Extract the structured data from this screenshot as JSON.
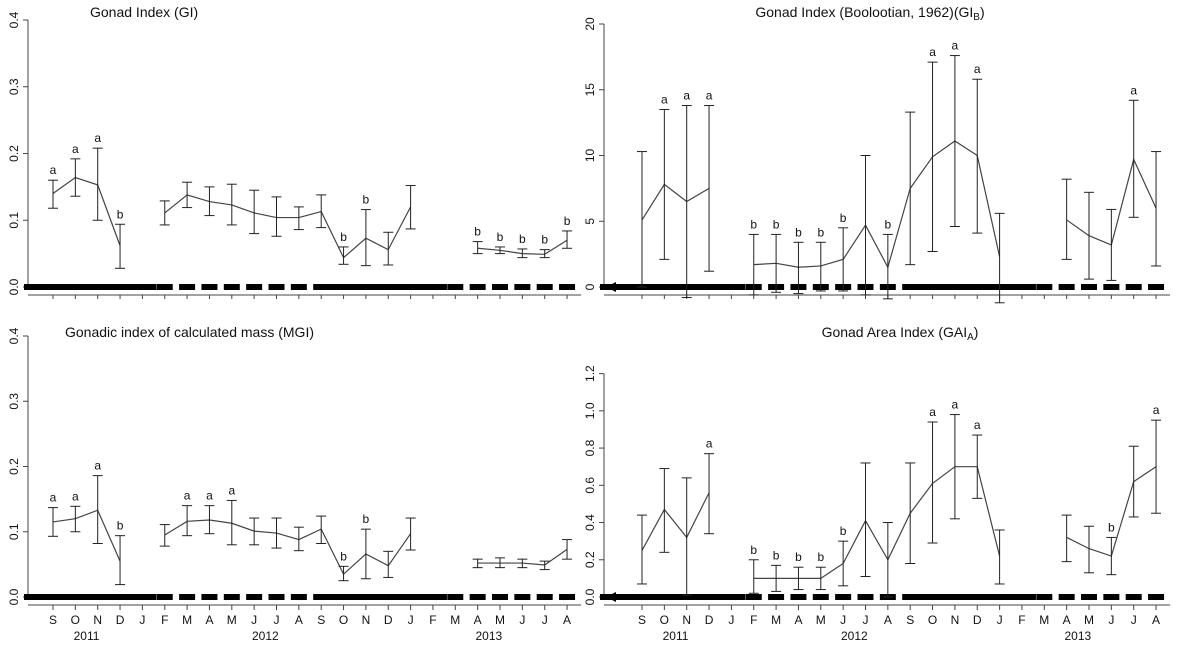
{
  "figure": {
    "x_months": [
      "S",
      "O",
      "N",
      "D",
      "J",
      "F",
      "M",
      "A",
      "M",
      "J",
      "J",
      "A",
      "S",
      "O",
      "N",
      "D",
      "J",
      "F",
      "M",
      "A",
      "M",
      "J",
      "J",
      "A"
    ],
    "x_years": [
      {
        "label": "2011",
        "from": 0,
        "to": 3
      },
      {
        "label": "2012",
        "from": 4,
        "to": 15
      },
      {
        "label": "2013",
        "from": 16,
        "to": 23
      }
    ],
    "line_color": "#444444",
    "text_color": "#111111"
  },
  "chart_data": [
    {
      "type": "line",
      "title": "Gonad Index  (GI)",
      "title_parts": [
        {
          "text": "Gonad Index  (GI)"
        }
      ],
      "ylim": [
        0,
        0.4
      ],
      "yticks": [
        0,
        0.1,
        0.2,
        0.3,
        0.4
      ],
      "ytick_labels": [
        "0.0",
        "0.1",
        "0.2",
        "0.3",
        "0.4"
      ],
      "segments": [
        [
          {
            "i": 0,
            "mean": 0.14,
            "lo": 0.118,
            "hi": 0.16,
            "letter": "a"
          },
          {
            "i": 1,
            "mean": 0.164,
            "lo": 0.136,
            "hi": 0.192,
            "letter": "a"
          },
          {
            "i": 2,
            "mean": 0.153,
            "lo": 0.1,
            "hi": 0.208,
            "letter": "a"
          },
          {
            "i": 3,
            "mean": 0.062,
            "lo": 0.028,
            "hi": 0.094,
            "letter": "b"
          }
        ],
        [
          {
            "i": 5,
            "mean": 0.111,
            "lo": 0.093,
            "hi": 0.129,
            "letter": ""
          },
          {
            "i": 6,
            "mean": 0.138,
            "lo": 0.119,
            "hi": 0.157,
            "letter": ""
          },
          {
            "i": 7,
            "mean": 0.128,
            "lo": 0.107,
            "hi": 0.15,
            "letter": ""
          },
          {
            "i": 8,
            "mean": 0.123,
            "lo": 0.093,
            "hi": 0.154,
            "letter": ""
          },
          {
            "i": 9,
            "mean": 0.111,
            "lo": 0.08,
            "hi": 0.145,
            "letter": ""
          },
          {
            "i": 10,
            "mean": 0.104,
            "lo": 0.076,
            "hi": 0.135,
            "letter": ""
          },
          {
            "i": 11,
            "mean": 0.104,
            "lo": 0.086,
            "hi": 0.12,
            "letter": ""
          },
          {
            "i": 12,
            "mean": 0.113,
            "lo": 0.089,
            "hi": 0.138,
            "letter": ""
          },
          {
            "i": 13,
            "mean": 0.044,
            "lo": 0.034,
            "hi": 0.06,
            "letter": "b"
          },
          {
            "i": 14,
            "mean": 0.073,
            "lo": 0.032,
            "hi": 0.116,
            "letter": "b"
          },
          {
            "i": 15,
            "mean": 0.056,
            "lo": 0.033,
            "hi": 0.082,
            "letter": ""
          },
          {
            "i": 16,
            "mean": 0.12,
            "lo": 0.087,
            "hi": 0.152,
            "letter": ""
          }
        ],
        [
          {
            "i": 19,
            "mean": 0.058,
            "lo": 0.05,
            "hi": 0.068,
            "letter": "b"
          },
          {
            "i": 20,
            "mean": 0.055,
            "lo": 0.05,
            "hi": 0.06,
            "letter": "b"
          },
          {
            "i": 21,
            "mean": 0.05,
            "lo": 0.044,
            "hi": 0.057,
            "letter": "b"
          },
          {
            "i": 22,
            "mean": 0.049,
            "lo": 0.044,
            "hi": 0.056,
            "letter": "b"
          },
          {
            "i": 23,
            "mean": 0.07,
            "lo": 0.058,
            "hi": 0.084,
            "letter": "b"
          }
        ]
      ]
    },
    {
      "type": "line",
      "title": "Gonad Index (Boolootian, 1962)(GIB)",
      "title_parts": [
        {
          "text": "Gonad Index (Boolootian, 1962)(GI"
        },
        {
          "text": "B",
          "sub": true
        },
        {
          "text": ")"
        }
      ],
      "ylim": [
        0,
        20
      ],
      "yticks": [
        0,
        5,
        10,
        15,
        20
      ],
      "ytick_labels": [
        "0",
        "5",
        "10",
        "15",
        "20"
      ],
      "segments": [
        [
          {
            "i": 0,
            "mean": 5.1,
            "lo": 0.0,
            "hi": 10.3,
            "letter": ""
          },
          {
            "i": 1,
            "mean": 7.8,
            "lo": 2.1,
            "hi": 13.5,
            "letter": "a"
          },
          {
            "i": 2,
            "mean": 6.5,
            "lo": -0.8,
            "hi": 13.8,
            "letter": "a"
          },
          {
            "i": 3,
            "mean": 7.5,
            "lo": 1.2,
            "hi": 13.8,
            "letter": "a"
          }
        ],
        [
          {
            "i": 5,
            "mean": 1.7,
            "lo": -0.6,
            "hi": 4.0,
            "letter": "b"
          },
          {
            "i": 6,
            "mean": 1.8,
            "lo": -0.4,
            "hi": 4.0,
            "letter": "b"
          },
          {
            "i": 7,
            "mean": 1.5,
            "lo": -0.5,
            "hi": 3.4,
            "letter": "b"
          },
          {
            "i": 8,
            "mean": 1.6,
            "lo": -0.3,
            "hi": 3.4,
            "letter": "b"
          },
          {
            "i": 9,
            "mean": 2.1,
            "lo": -0.3,
            "hi": 4.5,
            "letter": "b"
          },
          {
            "i": 10,
            "mean": 4.7,
            "lo": -0.6,
            "hi": 10.0,
            "letter": ""
          },
          {
            "i": 11,
            "mean": 1.5,
            "lo": -0.9,
            "hi": 4.0,
            "letter": "b"
          },
          {
            "i": 12,
            "mean": 7.5,
            "lo": 1.7,
            "hi": 13.3,
            "letter": ""
          },
          {
            "i": 13,
            "mean": 9.9,
            "lo": 2.7,
            "hi": 17.1,
            "letter": "a"
          },
          {
            "i": 14,
            "mean": 11.1,
            "lo": 4.6,
            "hi": 17.6,
            "letter": "a"
          },
          {
            "i": 15,
            "mean": 10.0,
            "lo": 4.1,
            "hi": 15.8,
            "letter": "a"
          },
          {
            "i": 16,
            "mean": 2.3,
            "lo": -1.2,
            "hi": 5.6,
            "letter": ""
          }
        ],
        [
          {
            "i": 19,
            "mean": 5.1,
            "lo": 2.1,
            "hi": 8.2,
            "letter": ""
          },
          {
            "i": 20,
            "mean": 3.9,
            "lo": 0.6,
            "hi": 7.2,
            "letter": ""
          },
          {
            "i": 21,
            "mean": 3.2,
            "lo": 0.5,
            "hi": 5.9,
            "letter": ""
          },
          {
            "i": 22,
            "mean": 9.7,
            "lo": 5.3,
            "hi": 14.2,
            "letter": "a"
          },
          {
            "i": 23,
            "mean": 6.0,
            "lo": 1.6,
            "hi": 10.3,
            "letter": ""
          }
        ]
      ]
    },
    {
      "type": "line",
      "title": "Gonadic index of calculated mass (MGI)",
      "title_parts": [
        {
          "text": "Gonadic index of calculated mass (MGI)"
        }
      ],
      "ylim": [
        0,
        0.4
      ],
      "yticks": [
        0,
        0.1,
        0.2,
        0.3,
        0.4
      ],
      "ytick_labels": [
        "0.0",
        "0.1",
        "0.2",
        "0.3",
        "0.4"
      ],
      "segments": [
        [
          {
            "i": 0,
            "mean": 0.115,
            "lo": 0.093,
            "hi": 0.137,
            "letter": "a"
          },
          {
            "i": 1,
            "mean": 0.12,
            "lo": 0.1,
            "hi": 0.139,
            "letter": "a"
          },
          {
            "i": 2,
            "mean": 0.133,
            "lo": 0.082,
            "hi": 0.186,
            "letter": "a"
          },
          {
            "i": 3,
            "mean": 0.055,
            "lo": 0.019,
            "hi": 0.094,
            "letter": "b"
          }
        ],
        [
          {
            "i": 5,
            "mean": 0.095,
            "lo": 0.078,
            "hi": 0.111,
            "letter": ""
          },
          {
            "i": 6,
            "mean": 0.116,
            "lo": 0.094,
            "hi": 0.14,
            "letter": "a"
          },
          {
            "i": 7,
            "mean": 0.118,
            "lo": 0.097,
            "hi": 0.14,
            "letter": "a"
          },
          {
            "i": 8,
            "mean": 0.113,
            "lo": 0.08,
            "hi": 0.148,
            "letter": "a"
          },
          {
            "i": 9,
            "mean": 0.101,
            "lo": 0.08,
            "hi": 0.121,
            "letter": ""
          },
          {
            "i": 10,
            "mean": 0.098,
            "lo": 0.075,
            "hi": 0.121,
            "letter": ""
          },
          {
            "i": 11,
            "mean": 0.088,
            "lo": 0.071,
            "hi": 0.107,
            "letter": ""
          },
          {
            "i": 12,
            "mean": 0.104,
            "lo": 0.082,
            "hi": 0.124,
            "letter": ""
          },
          {
            "i": 13,
            "mean": 0.035,
            "lo": 0.025,
            "hi": 0.047,
            "letter": "b"
          },
          {
            "i": 14,
            "mean": 0.066,
            "lo": 0.028,
            "hi": 0.104,
            "letter": "b"
          },
          {
            "i": 15,
            "mean": 0.048,
            "lo": 0.03,
            "hi": 0.07,
            "letter": ""
          },
          {
            "i": 16,
            "mean": 0.097,
            "lo": 0.072,
            "hi": 0.121,
            "letter": ""
          }
        ],
        [
          {
            "i": 19,
            "mean": 0.052,
            "lo": 0.045,
            "hi": 0.058,
            "letter": ""
          },
          {
            "i": 20,
            "mean": 0.052,
            "lo": 0.045,
            "hi": 0.06,
            "letter": ""
          },
          {
            "i": 21,
            "mean": 0.052,
            "lo": 0.045,
            "hi": 0.058,
            "letter": ""
          },
          {
            "i": 22,
            "mean": 0.049,
            "lo": 0.042,
            "hi": 0.055,
            "letter": ""
          },
          {
            "i": 23,
            "mean": 0.073,
            "lo": 0.058,
            "hi": 0.088,
            "letter": ""
          }
        ]
      ]
    },
    {
      "type": "line",
      "title": "Gonad Area Index  (GAIA)",
      "title_parts": [
        {
          "text": "Gonad Area Index  (GAI"
        },
        {
          "text": "A",
          "sub": true
        },
        {
          "text": ")"
        }
      ],
      "ylim": [
        0,
        1.3
      ],
      "yticks": [
        0,
        0.2,
        0.4,
        0.6,
        0.8,
        1.0,
        1.2
      ],
      "ytick_labels": [
        "0.0",
        "0.2",
        "0.4",
        "0.6",
        "0.8",
        "1.0",
        "1.2"
      ],
      "segments": [
        [
          {
            "i": 0,
            "mean": 0.25,
            "lo": 0.07,
            "hi": 0.44,
            "letter": ""
          },
          {
            "i": 1,
            "mean": 0.47,
            "lo": 0.24,
            "hi": 0.69,
            "letter": ""
          },
          {
            "i": 2,
            "mean": 0.32,
            "lo": 0.01,
            "hi": 0.64,
            "letter": ""
          },
          {
            "i": 3,
            "mean": 0.56,
            "lo": 0.34,
            "hi": 0.77,
            "letter": "a"
          }
        ],
        [
          {
            "i": 5,
            "mean": 0.1,
            "lo": 0.02,
            "hi": 0.2,
            "letter": "b"
          },
          {
            "i": 6,
            "mean": 0.1,
            "lo": 0.03,
            "hi": 0.17,
            "letter": "b"
          },
          {
            "i": 7,
            "mean": 0.1,
            "lo": 0.04,
            "hi": 0.16,
            "letter": "b"
          },
          {
            "i": 8,
            "mean": 0.1,
            "lo": 0.04,
            "hi": 0.16,
            "letter": "b"
          },
          {
            "i": 9,
            "mean": 0.18,
            "lo": 0.06,
            "hi": 0.3,
            "letter": "b"
          },
          {
            "i": 10,
            "mean": 0.41,
            "lo": 0.11,
            "hi": 0.72,
            "letter": ""
          },
          {
            "i": 11,
            "mean": 0.2,
            "lo": 0.0,
            "hi": 0.4,
            "letter": ""
          },
          {
            "i": 12,
            "mean": 0.45,
            "lo": 0.18,
            "hi": 0.72,
            "letter": ""
          },
          {
            "i": 13,
            "mean": 0.61,
            "lo": 0.29,
            "hi": 0.94,
            "letter": "a"
          },
          {
            "i": 14,
            "mean": 0.7,
            "lo": 0.42,
            "hi": 0.98,
            "letter": "a"
          },
          {
            "i": 15,
            "mean": 0.7,
            "lo": 0.53,
            "hi": 0.87,
            "letter": "a"
          },
          {
            "i": 16,
            "mean": 0.22,
            "lo": 0.07,
            "hi": 0.36,
            "letter": ""
          }
        ],
        [
          {
            "i": 19,
            "mean": 0.32,
            "lo": 0.19,
            "hi": 0.44,
            "letter": ""
          },
          {
            "i": 20,
            "mean": 0.26,
            "lo": 0.13,
            "hi": 0.38,
            "letter": ""
          },
          {
            "i": 21,
            "mean": 0.22,
            "lo": 0.12,
            "hi": 0.32,
            "letter": "b"
          },
          {
            "i": 22,
            "mean": 0.62,
            "lo": 0.43,
            "hi": 0.81,
            "letter": ""
          },
          {
            "i": 23,
            "mean": 0.7,
            "lo": 0.45,
            "hi": 0.95,
            "letter": "a"
          }
        ]
      ]
    }
  ]
}
